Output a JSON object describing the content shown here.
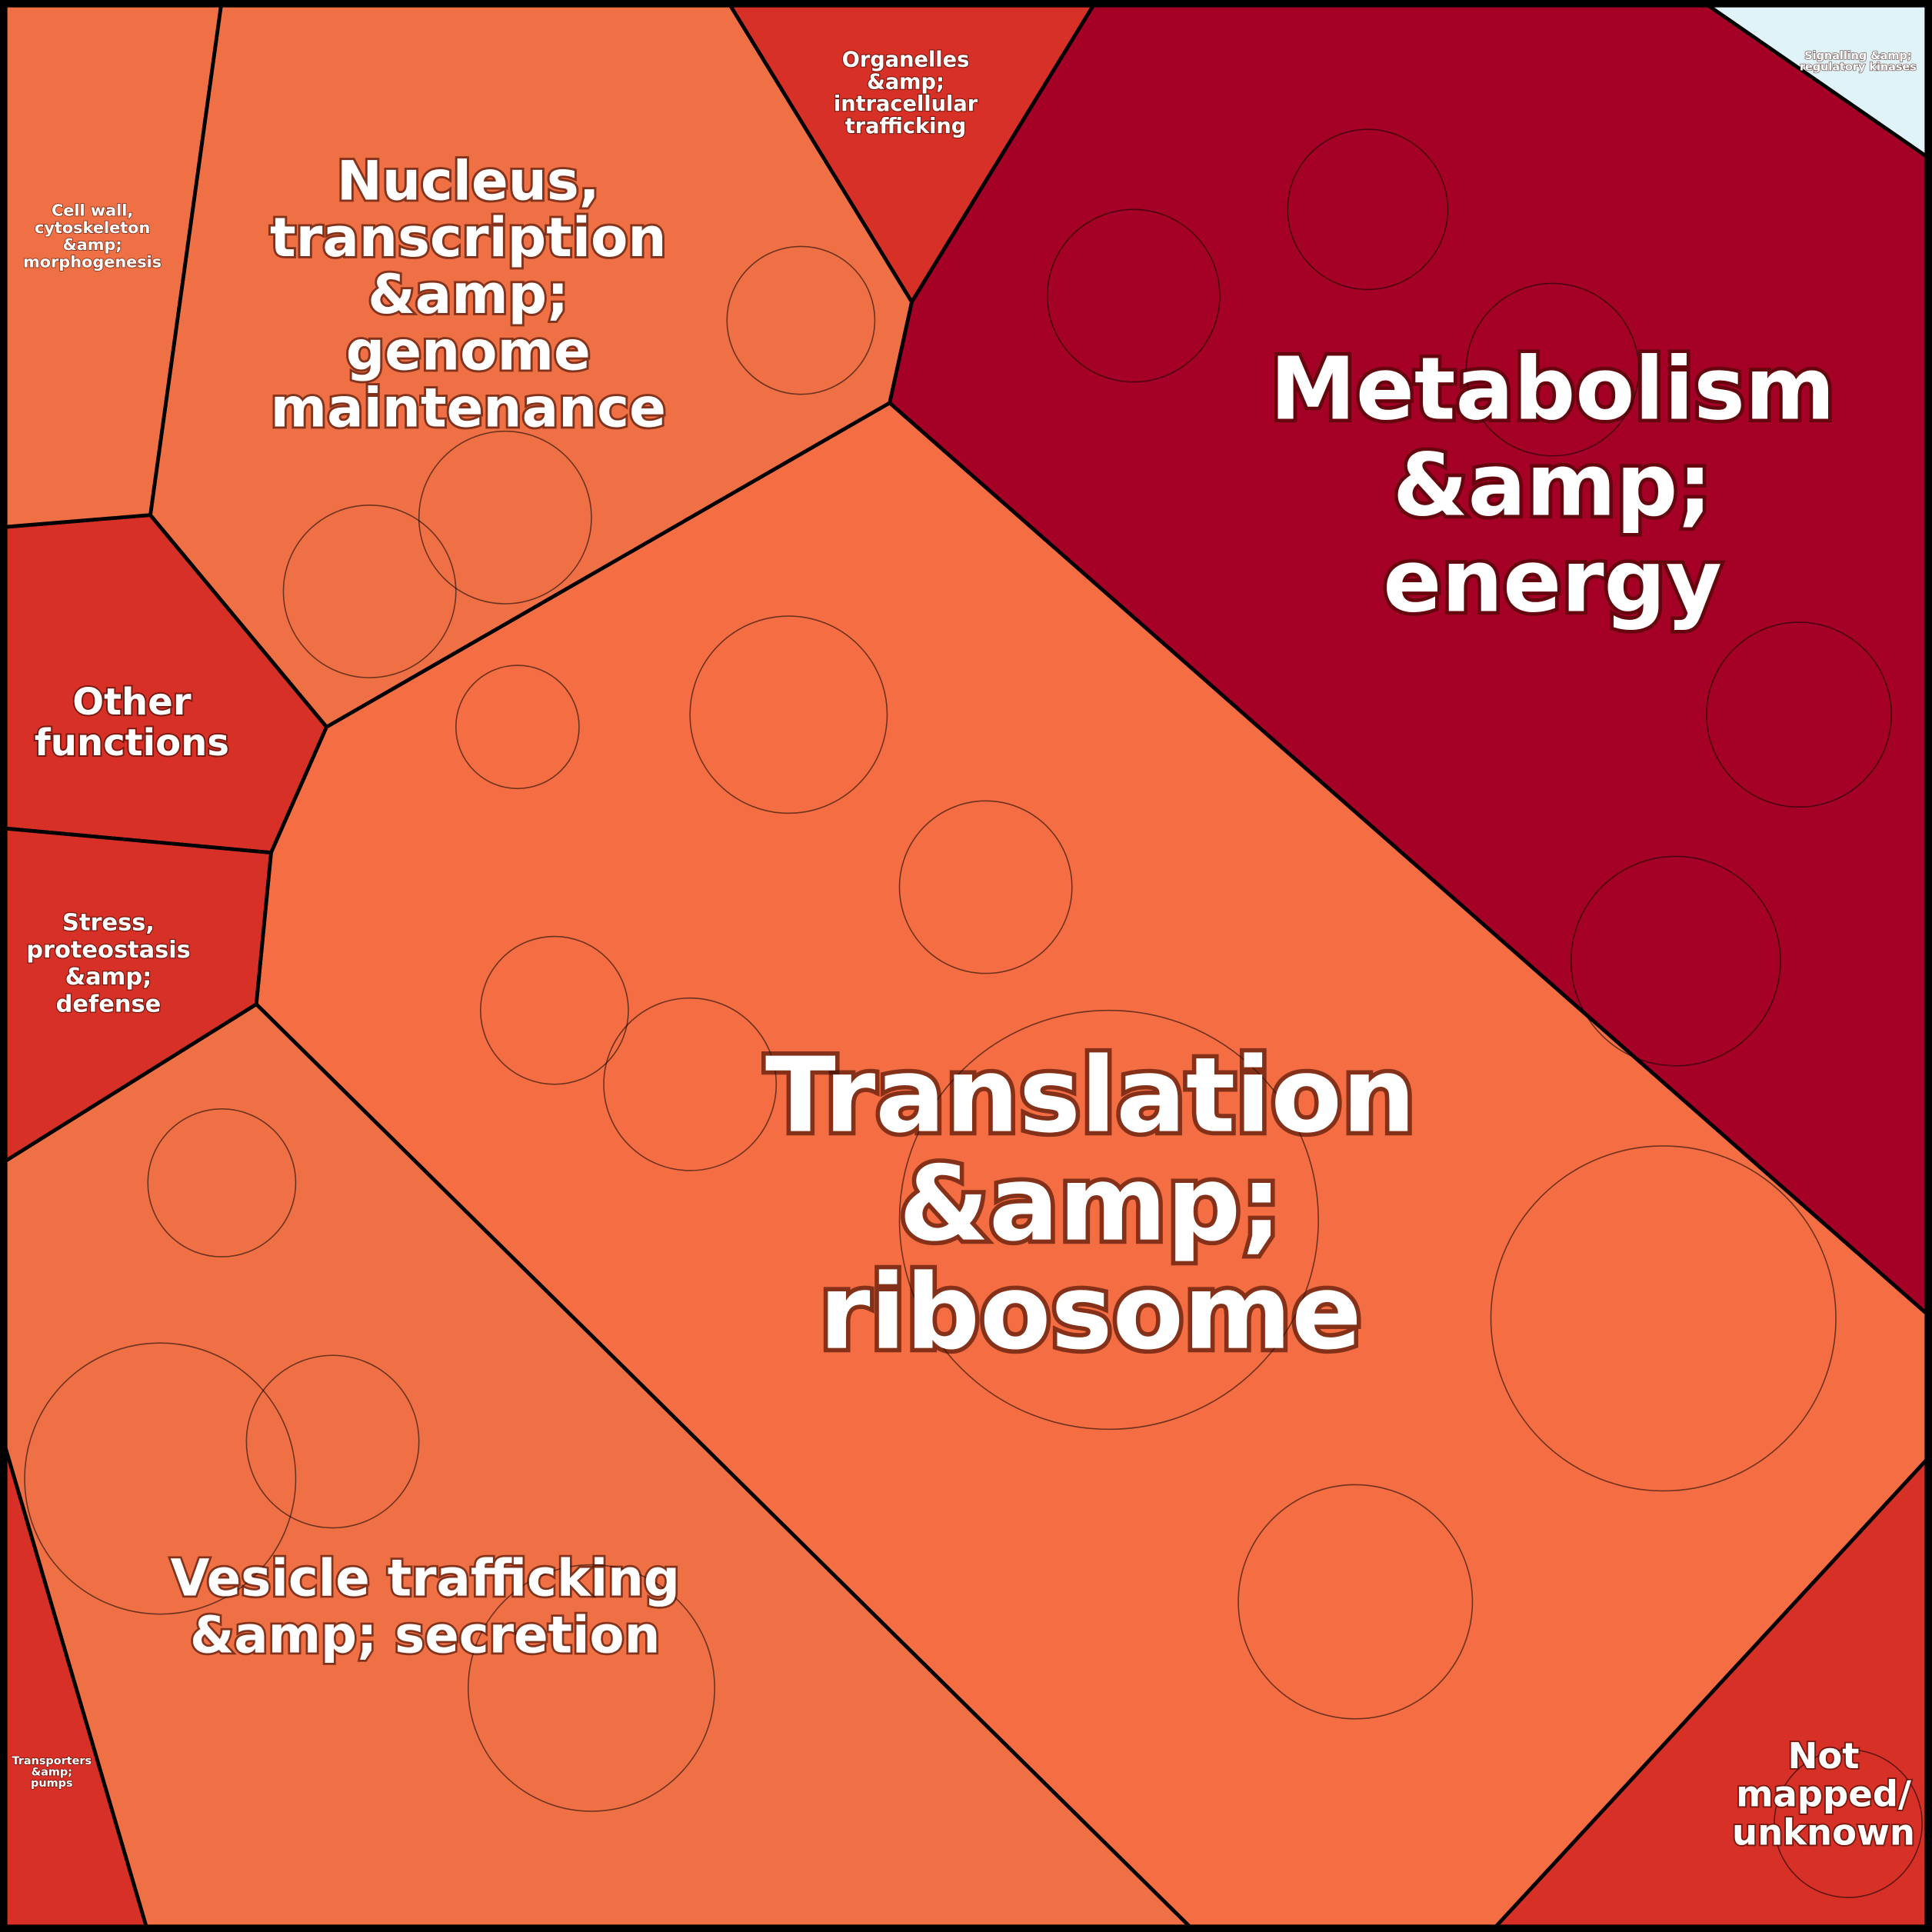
{
  "regions": [
    {
      "label": [
        "Metabolism",
        "&amp;",
        "energy"
      ]
    },
    {
      "label": [
        "Translation",
        "&amp;",
        "ribosome"
      ]
    },
    {
      "label": [
        "Nucleus,",
        "transcription",
        "&amp;",
        "genome",
        "maintenance"
      ]
    },
    {
      "label": [
        "Vesicle trafficking",
        "&amp; secretion"
      ]
    },
    {
      "label": [
        "Other",
        "functions"
      ]
    },
    {
      "label": [
        "Stress,",
        "proteostasis",
        "&amp;",
        "defense"
      ]
    },
    {
      "label": [
        "Not",
        "mapped/",
        "unknown"
      ]
    },
    {
      "label": [
        "Organelles",
        "&amp;",
        "intracellular",
        "trafficking"
      ]
    },
    {
      "label": [
        "Cell wall,",
        "cytoskeleton",
        "&amp;",
        "morphogenesis"
      ]
    },
    {
      "label": [
        "Transporters",
        "&amp;",
        "pumps"
      ]
    },
    {
      "label": [
        "Signalling &amp;",
        "regulatory kinases"
      ]
    }
  ]
}
